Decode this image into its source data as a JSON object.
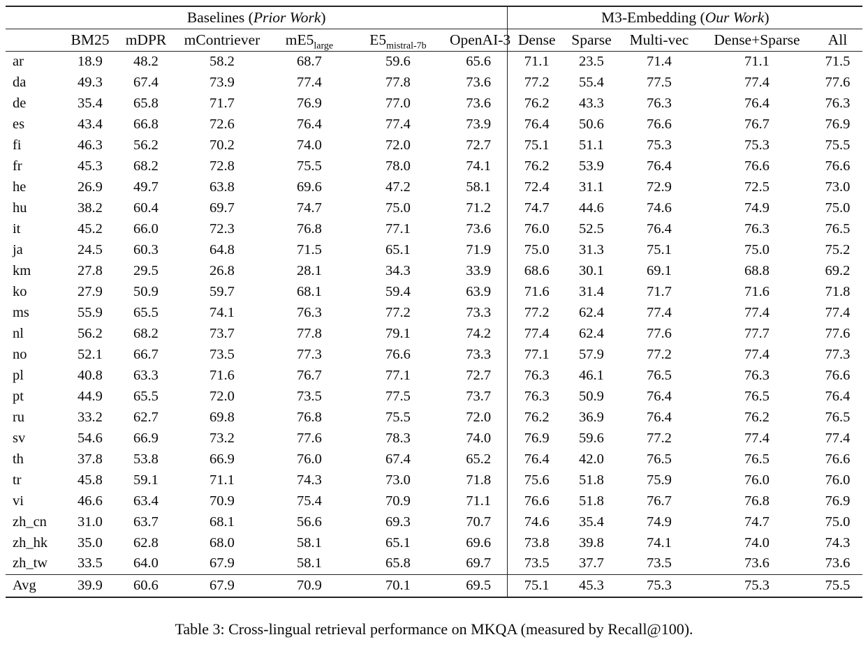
{
  "page": {
    "caption": "Table 3: Cross-lingual retrieval performance on MKQA (measured by Recall@100)."
  },
  "table": {
    "group_headers": {
      "baselines": {
        "prefix": "Baselines (",
        "italic": "Prior Work",
        "suffix": ")"
      },
      "m3": {
        "prefix": "M3-Embedding (",
        "italic": "Our Work",
        "suffix": ")"
      }
    },
    "columns": [
      {
        "label": "BM25"
      },
      {
        "label": "mDPR"
      },
      {
        "label": "mContriever"
      },
      {
        "label": "mE5",
        "sub": "large"
      },
      {
        "label": "E5",
        "sub": "mistral-7b"
      },
      {
        "label": "OpenAI-3"
      },
      {
        "label": "Dense"
      },
      {
        "label": "Sparse"
      },
      {
        "label": "Multi-vec"
      },
      {
        "label": "Dense+Sparse"
      },
      {
        "label": "All"
      }
    ],
    "rows": [
      {
        "lang": "ar",
        "values": [
          "18.9",
          "48.2",
          "58.2",
          "68.7",
          "59.6",
          "65.6",
          "71.1",
          "23.5",
          "71.4",
          "71.1",
          "71.5"
        ],
        "bold": [
          10
        ]
      },
      {
        "lang": "da",
        "values": [
          "49.3",
          "67.4",
          "73.9",
          "77.4",
          "77.8",
          "73.6",
          "77.2",
          "55.4",
          "77.5",
          "77.4",
          "77.6"
        ],
        "bold": [
          4
        ]
      },
      {
        "lang": "de",
        "values": [
          "35.4",
          "65.8",
          "71.7",
          "76.9",
          "77.0",
          "73.6",
          "76.2",
          "43.3",
          "76.3",
          "76.4",
          "76.3"
        ],
        "bold": [
          4
        ]
      },
      {
        "lang": "es",
        "values": [
          "43.4",
          "66.8",
          "72.6",
          "76.4",
          "77.4",
          "73.9",
          "76.4",
          "50.6",
          "76.6",
          "76.7",
          "76.9"
        ],
        "bold": [
          4
        ]
      },
      {
        "lang": "fi",
        "values": [
          "46.3",
          "56.2",
          "70.2",
          "74.0",
          "72.0",
          "72.7",
          "75.1",
          "51.1",
          "75.3",
          "75.3",
          "75.5"
        ],
        "bold": [
          10
        ]
      },
      {
        "lang": "fr",
        "values": [
          "45.3",
          "68.2",
          "72.8",
          "75.5",
          "78.0",
          "74.1",
          "76.2",
          "53.9",
          "76.4",
          "76.6",
          "76.6"
        ],
        "bold": [
          4
        ]
      },
      {
        "lang": "he",
        "values": [
          "26.9",
          "49.7",
          "63.8",
          "69.6",
          "47.2",
          "58.1",
          "72.4",
          "31.1",
          "72.9",
          "72.5",
          "73.0"
        ],
        "bold": [
          10
        ]
      },
      {
        "lang": "hu",
        "values": [
          "38.2",
          "60.4",
          "69.7",
          "74.7",
          "75.0",
          "71.2",
          "74.7",
          "44.6",
          "74.6",
          "74.9",
          "75.0"
        ],
        "bold": [
          4,
          10
        ]
      },
      {
        "lang": "it",
        "values": [
          "45.2",
          "66.0",
          "72.3",
          "76.8",
          "77.1",
          "73.6",
          "76.0",
          "52.5",
          "76.4",
          "76.3",
          "76.5"
        ],
        "bold": [
          4
        ]
      },
      {
        "lang": "ja",
        "values": [
          "24.5",
          "60.3",
          "64.8",
          "71.5",
          "65.1",
          "71.9",
          "75.0",
          "31.3",
          "75.1",
          "75.0",
          "75.2"
        ],
        "bold": [
          10
        ]
      },
      {
        "lang": "km",
        "values": [
          "27.8",
          "29.5",
          "26.8",
          "28.1",
          "34.3",
          "33.9",
          "68.6",
          "30.1",
          "69.1",
          "68.8",
          "69.2"
        ],
        "bold": [
          10
        ]
      },
      {
        "lang": "ko",
        "values": [
          "27.9",
          "50.9",
          "59.7",
          "68.1",
          "59.4",
          "63.9",
          "71.6",
          "31.4",
          "71.7",
          "71.6",
          "71.8"
        ],
        "bold": [
          10
        ]
      },
      {
        "lang": "ms",
        "values": [
          "55.9",
          "65.5",
          "74.1",
          "76.3",
          "77.2",
          "73.3",
          "77.2",
          "62.4",
          "77.4",
          "77.4",
          "77.4"
        ],
        "bold": [
          8,
          9,
          10
        ]
      },
      {
        "lang": "nl",
        "values": [
          "56.2",
          "68.2",
          "73.7",
          "77.8",
          "79.1",
          "74.2",
          "77.4",
          "62.4",
          "77.6",
          "77.7",
          "77.6"
        ],
        "bold": [
          4
        ]
      },
      {
        "lang": "no",
        "values": [
          "52.1",
          "66.7",
          "73.5",
          "77.3",
          "76.6",
          "73.3",
          "77.1",
          "57.9",
          "77.2",
          "77.4",
          "77.3"
        ],
        "bold": [
          9
        ]
      },
      {
        "lang": "pl",
        "values": [
          "40.8",
          "63.3",
          "71.6",
          "76.7",
          "77.1",
          "72.7",
          "76.3",
          "46.1",
          "76.5",
          "76.3",
          "76.6"
        ],
        "bold": [
          4
        ]
      },
      {
        "lang": "pt",
        "values": [
          "44.9",
          "65.5",
          "72.0",
          "73.5",
          "77.5",
          "73.7",
          "76.3",
          "50.9",
          "76.4",
          "76.5",
          "76.4"
        ],
        "bold": [
          4
        ]
      },
      {
        "lang": "ru",
        "values": [
          "33.2",
          "62.7",
          "69.8",
          "76.8",
          "75.5",
          "72.0",
          "76.2",
          "36.9",
          "76.4",
          "76.2",
          "76.5"
        ],
        "bold": [
          3
        ]
      },
      {
        "lang": "sv",
        "values": [
          "54.6",
          "66.9",
          "73.2",
          "77.6",
          "78.3",
          "74.0",
          "76.9",
          "59.6",
          "77.2",
          "77.4",
          "77.4"
        ],
        "bold": [
          4
        ]
      },
      {
        "lang": "th",
        "values": [
          "37.8",
          "53.8",
          "66.9",
          "76.0",
          "67.4",
          "65.2",
          "76.4",
          "42.0",
          "76.5",
          "76.5",
          "76.6"
        ],
        "bold": [
          10
        ]
      },
      {
        "lang": "tr",
        "values": [
          "45.8",
          "59.1",
          "71.1",
          "74.3",
          "73.0",
          "71.8",
          "75.6",
          "51.8",
          "75.9",
          "76.0",
          "76.0"
        ],
        "bold": [
          9,
          10
        ]
      },
      {
        "lang": "vi",
        "values": [
          "46.6",
          "63.4",
          "70.9",
          "75.4",
          "70.9",
          "71.1",
          "76.6",
          "51.8",
          "76.7",
          "76.8",
          "76.9"
        ],
        "bold": [
          10
        ]
      },
      {
        "lang": "zh_cn",
        "values": [
          "31.0",
          "63.7",
          "68.1",
          "56.6",
          "69.3",
          "70.7",
          "74.6",
          "35.4",
          "74.9",
          "74.7",
          "75.0"
        ],
        "bold": [
          10
        ]
      },
      {
        "lang": "zh_hk",
        "values": [
          "35.0",
          "62.8",
          "68.0",
          "58.1",
          "65.1",
          "69.6",
          "73.8",
          "39.8",
          "74.1",
          "74.0",
          "74.3"
        ],
        "bold": [
          10
        ]
      },
      {
        "lang": "zh_tw",
        "values": [
          "33.5",
          "64.0",
          "67.9",
          "58.1",
          "65.8",
          "69.7",
          "73.5",
          "37.7",
          "73.5",
          "73.6",
          "73.6"
        ],
        "bold": [
          9,
          10
        ]
      }
    ],
    "avg_row": {
      "lang": "Avg",
      "values": [
        "39.9",
        "60.6",
        "67.9",
        "70.9",
        "70.1",
        "69.5",
        "75.1",
        "45.3",
        "75.3",
        "75.3",
        "75.5"
      ],
      "bold": [
        10
      ]
    }
  }
}
